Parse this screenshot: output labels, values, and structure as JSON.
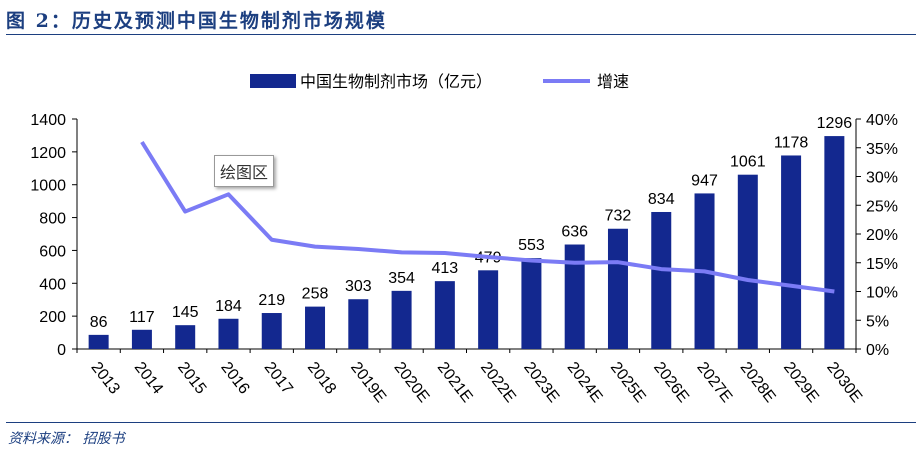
{
  "title": "图 2：历史及预测中国生物制剂市场规模",
  "source": "资料来源：  招股书",
  "plot_area_label": "绘图区",
  "chart_data": {
    "type": "bar",
    "categories": [
      "2013",
      "2014",
      "2015",
      "2016",
      "2017",
      "2018",
      "2019E",
      "2020E",
      "2021E",
      "2022E",
      "2023E",
      "2024E",
      "2025E",
      "2026E",
      "2027E",
      "2028E",
      "2029E",
      "2030E"
    ],
    "series": [
      {
        "name": "中国生物制剂市场（亿元）",
        "type": "bar",
        "axis": "left",
        "color": "#13288f",
        "values": [
          86,
          117,
          145,
          184,
          219,
          258,
          303,
          354,
          413,
          479,
          553,
          636,
          732,
          834,
          947,
          1061,
          1178,
          1296
        ]
      },
      {
        "name": "增速",
        "type": "line",
        "axis": "right",
        "color": "#7b7bf5",
        "values": [
          null,
          36.0,
          23.9,
          26.9,
          19.0,
          17.8,
          17.4,
          16.8,
          16.7,
          16.0,
          15.4,
          15.0,
          15.1,
          13.9,
          13.5,
          12.0,
          11.0,
          10.0
        ]
      }
    ],
    "left_axis": {
      "ylim": [
        0,
        1400
      ],
      "ticks": [
        "0",
        "200",
        "400",
        "600",
        "800",
        "1000",
        "1200",
        "1400"
      ]
    },
    "right_axis": {
      "ylim": [
        0,
        40
      ],
      "ticks": [
        "0%",
        "5%",
        "10%",
        "15%",
        "20%",
        "25%",
        "30%",
        "35%",
        "40%"
      ]
    },
    "legend_position": "top",
    "grid": false
  }
}
